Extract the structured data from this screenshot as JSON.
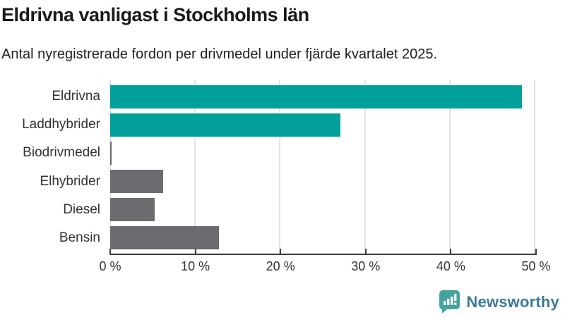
{
  "header": {
    "title": "Eldrivna vanligast i Stockholms län",
    "subtitle": "Antal nyregistrerade fordon per drivmedel under fjärde kvartalet 2025."
  },
  "chart_data": {
    "type": "bar",
    "orientation": "horizontal",
    "title": "Eldrivna vanligast i Stockholms län",
    "subtitle": "Antal nyregistrerade fordon per drivmedel under fjärde kvartalet 2025.",
    "categories": [
      "Eldrivna",
      "Laddhybrider",
      "Biodrivmedel",
      "Elhybrider",
      "Diesel",
      "Bensin"
    ],
    "values": [
      48.5,
      27.1,
      0.2,
      6.2,
      5.2,
      12.8
    ],
    "unit": "%",
    "bar_colors": [
      "#00a09a",
      "#00a09a",
      "#6c6b70",
      "#6c6b70",
      "#6c6b70",
      "#6c6b70"
    ],
    "xlabel": "",
    "ylabel": "",
    "xlim": [
      0,
      50
    ],
    "x_tick_values": [
      0,
      10,
      20,
      30,
      40,
      50
    ],
    "x_tick_labels": [
      "0 %",
      "10 %",
      "20 %",
      "30 %",
      "40 %",
      "50 %"
    ],
    "grid": "vertical-gridlines-on",
    "legend": "none"
  },
  "style_colors": {
    "highlight_teal": "#00a09a",
    "neutral_grey": "#6c6b70",
    "gridline": "#e4e4e4",
    "axis": "#3c3c3c"
  },
  "footer": {
    "brand": "Newsworthy",
    "brand_text_color": "#3d7a99",
    "logo_icon": "bar-chart-speech-bubble-icon",
    "logo_icon_color": "#43a39d"
  }
}
